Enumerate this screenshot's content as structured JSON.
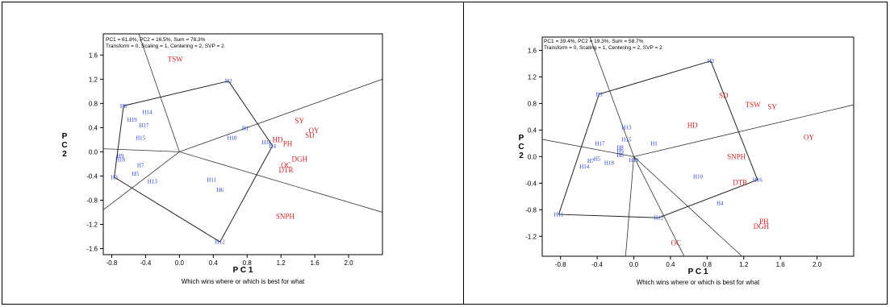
{
  "colors": {
    "genotype": "#2a3fd0",
    "trait": "#c8282a",
    "line": "#000000",
    "polygon": "#333333"
  },
  "chart_data": [
    {
      "type": "scatter",
      "header_line1": "PC1 = 61.8%, PC2 = 16.5%, Sum = 78.3%",
      "header_line2": "Transform = 0, Scaling = 1, Centering = 2, SVP = 2",
      "xlabel": "P C 1",
      "ylabel": "P C 2",
      "caption": "Which wins where or which is best for what",
      "xlim": [
        -0.9,
        2.4
      ],
      "ylim": [
        -1.7,
        1.95
      ],
      "xticks": [
        -0.8,
        -0.4,
        0.0,
        0.4,
        0.8,
        1.2,
        1.6,
        2.0
      ],
      "xtick_labels": [
        "-0.8",
        "-0.4",
        "0.0",
        "0.4",
        "0.8",
        "1.2",
        "1.6",
        "2.0"
      ],
      "yticks": [
        1.6,
        1.2,
        0.8,
        0.4,
        0.0,
        -0.4,
        -0.8,
        -1.2,
        -1.6
      ],
      "ytick_labels": [
        "1.6",
        "1.2",
        "0.8",
        "0.4",
        "0.0",
        "-0.4",
        "-0.8",
        "-1.2",
        "-1.6"
      ],
      "genotypes": [
        {
          "label": "H2",
          "x": 0.58,
          "y": 1.17
        },
        {
          "label": "H8",
          "x": -0.66,
          "y": 0.76
        },
        {
          "label": "H14",
          "x": -0.38,
          "y": 0.66
        },
        {
          "label": "H19",
          "x": -0.56,
          "y": 0.53
        },
        {
          "label": "H17",
          "x": -0.42,
          "y": 0.44
        },
        {
          "label": "H1",
          "x": 0.78,
          "y": 0.39
        },
        {
          "label": "H15",
          "x": -0.46,
          "y": 0.23
        },
        {
          "label": "H10",
          "x": 0.62,
          "y": 0.23
        },
        {
          "label": "H16",
          "x": 1.03,
          "y": 0.16
        },
        {
          "label": "H4",
          "x": 1.1,
          "y": 0.1
        },
        {
          "label": "H9",
          "x": -0.7,
          "y": -0.07
        },
        {
          "label": "H18",
          "x": -0.7,
          "y": -0.13
        },
        {
          "label": "H7",
          "x": -0.46,
          "y": -0.22
        },
        {
          "label": "H5",
          "x": -0.52,
          "y": -0.36
        },
        {
          "label": "H3",
          "x": -0.77,
          "y": -0.42
        },
        {
          "label": "H13",
          "x": -0.32,
          "y": -0.49
        },
        {
          "label": "H11",
          "x": 0.38,
          "y": -0.46
        },
        {
          "label": "H6",
          "x": 0.48,
          "y": -0.63
        },
        {
          "label": "H12",
          "x": 0.48,
          "y": -1.49
        }
      ],
      "traits": [
        {
          "label": "TSW",
          "x": -0.05,
          "y": 1.53
        },
        {
          "label": "SY",
          "x": 1.42,
          "y": 0.51
        },
        {
          "label": "OY",
          "x": 1.59,
          "y": 0.35
        },
        {
          "label": "SD",
          "x": 1.54,
          "y": 0.27
        },
        {
          "label": "HD",
          "x": 1.16,
          "y": 0.2
        },
        {
          "label": "PH",
          "x": 1.28,
          "y": 0.13
        },
        {
          "label": "DGH",
          "x": 1.42,
          "y": -0.12
        },
        {
          "label": "OC",
          "x": 1.26,
          "y": -0.22
        },
        {
          "label": "DTR",
          "x": 1.26,
          "y": -0.3
        },
        {
          "label": "SNPH",
          "x": 1.25,
          "y": -1.07
        }
      ],
      "polygon": [
        [
          0.58,
          1.17
        ],
        [
          -0.66,
          0.76
        ],
        [
          -0.77,
          -0.42
        ],
        [
          0.48,
          -1.49
        ],
        [
          1.1,
          0.1
        ],
        [
          0.58,
          1.17
        ]
      ],
      "rays": [
        [
          [
            0,
            0
          ],
          [
            -0.48,
            1.95
          ]
        ],
        [
          [
            0,
            0
          ],
          [
            2.4,
            1.2
          ]
        ],
        [
          [
            0,
            0
          ],
          [
            2.4,
            -1.0
          ]
        ],
        [
          [
            0,
            0
          ],
          [
            -0.9,
            0.05
          ]
        ],
        [
          [
            0,
            0
          ],
          [
            -0.9,
            -0.96
          ]
        ]
      ]
    },
    {
      "type": "scatter",
      "header_line1": "PC1 = 39.4%, PC2 = 19.3%, Sum = 58.7%",
      "header_line2": "Transform = 0, Scaling = 1, Centering = 2, SVP = 2",
      "xlabel": "P C 1",
      "ylabel": "P C 2",
      "caption": "Which wins where or which is best for what",
      "xlim": [
        -1.0,
        2.4
      ],
      "ylim": [
        -1.5,
        1.8
      ],
      "xticks": [
        -0.8,
        -0.4,
        0.0,
        0.4,
        0.8,
        1.2,
        1.6,
        2.0
      ],
      "xtick_labels": [
        "-0.8",
        "-0.4",
        "0.0",
        "0.4",
        "0.8",
        "1.2",
        "1.6",
        "2.0"
      ],
      "yticks": [
        1.6,
        1.2,
        0.8,
        0.4,
        0.0,
        -0.4,
        -0.8,
        -1.2
      ],
      "ytick_labels": [
        "1.6",
        "1.2",
        "0.8",
        "0.4",
        "0.0",
        "-0.4",
        "-0.8",
        "-1.2"
      ],
      "genotypes": [
        {
          "label": "H2",
          "x": 0.84,
          "y": 1.44
        },
        {
          "label": "H3",
          "x": -0.38,
          "y": 0.94
        },
        {
          "label": "H13",
          "x": -0.08,
          "y": 0.44
        },
        {
          "label": "H15",
          "x": -0.08,
          "y": 0.26
        },
        {
          "label": "H1",
          "x": 0.22,
          "y": 0.2
        },
        {
          "label": "H17",
          "x": -0.37,
          "y": 0.2
        },
        {
          "label": "H8",
          "x": -0.15,
          "y": 0.14
        },
        {
          "label": "H9",
          "x": -0.15,
          "y": 0.08
        },
        {
          "label": "H6",
          "x": -0.15,
          "y": 0.02
        },
        {
          "label": "H19",
          "x": 0.0,
          "y": -0.05
        },
        {
          "label": "H5",
          "x": -0.4,
          "y": -0.03
        },
        {
          "label": "H7",
          "x": -0.47,
          "y": -0.06
        },
        {
          "label": "H18",
          "x": -0.27,
          "y": -0.09
        },
        {
          "label": "H14",
          "x": -0.54,
          "y": -0.15
        },
        {
          "label": "H10",
          "x": 0.7,
          "y": -0.3
        },
        {
          "label": "H16",
          "x": 1.35,
          "y": -0.35
        },
        {
          "label": "H4",
          "x": 0.94,
          "y": -0.7
        },
        {
          "label": "H11",
          "x": -0.82,
          "y": -0.87
        },
        {
          "label": "H12",
          "x": 0.27,
          "y": -0.92
        }
      ],
      "traits": [
        {
          "label": "SD",
          "x": 0.98,
          "y": 0.92
        },
        {
          "label": "TSW",
          "x": 1.3,
          "y": 0.78
        },
        {
          "label": "SY",
          "x": 1.51,
          "y": 0.75
        },
        {
          "label": "HD",
          "x": 0.64,
          "y": 0.47
        },
        {
          "label": "OY",
          "x": 1.91,
          "y": 0.29
        },
        {
          "label": "SNPH",
          "x": 1.12,
          "y": 0.0
        },
        {
          "label": "DTR",
          "x": 1.16,
          "y": -0.39
        },
        {
          "label": "PH",
          "x": 1.42,
          "y": -0.98
        },
        {
          "label": "DGH",
          "x": 1.39,
          "y": -1.05
        },
        {
          "label": "OC",
          "x": 0.46,
          "y": -1.3
        }
      ],
      "polygon": [
        [
          0.84,
          1.44
        ],
        [
          -0.38,
          0.94
        ],
        [
          -0.82,
          -0.87
        ],
        [
          0.27,
          -0.92
        ],
        [
          1.35,
          -0.35
        ],
        [
          0.84,
          1.44
        ]
      ],
      "rays": [
        [
          [
            0,
            0
          ],
          [
            -0.48,
            1.8
          ]
        ],
        [
          [
            0,
            0
          ],
          [
            2.4,
            0.78
          ]
        ],
        [
          [
            0,
            0
          ],
          [
            1.18,
            -1.5
          ]
        ],
        [
          [
            0,
            0
          ],
          [
            0.55,
            -1.5
          ]
        ],
        [
          [
            0,
            0
          ],
          [
            -0.09,
            -1.5
          ]
        ],
        [
          [
            0,
            0
          ],
          [
            -1.0,
            0.26
          ]
        ]
      ]
    }
  ]
}
